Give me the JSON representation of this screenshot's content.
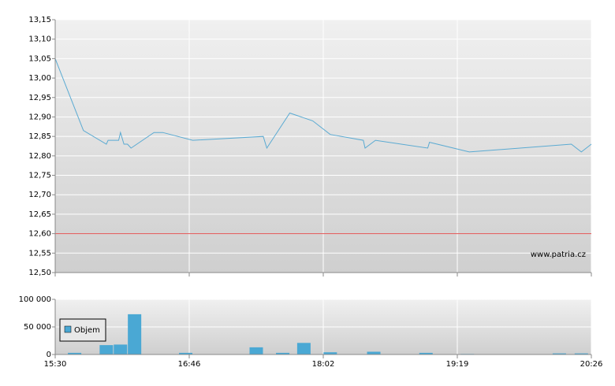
{
  "chart_data": [
    {
      "type": "line",
      "color": "#5aaad2",
      "x": [
        930,
        946,
        959,
        960,
        966,
        967,
        969,
        971,
        973,
        986,
        991,
        1008,
        1048,
        1050,
        1063,
        1076,
        1086,
        1105,
        1106,
        1112,
        1142,
        1143,
        1165,
        1216,
        1221,
        1226
      ],
      "values": [
        13.05,
        12.865,
        12.83,
        12.84,
        12.84,
        12.86,
        12.83,
        12.83,
        12.82,
        12.86,
        12.86,
        12.84,
        12.85,
        12.82,
        12.91,
        12.89,
        12.855,
        12.84,
        12.82,
        12.84,
        12.82,
        12.835,
        12.81,
        12.83,
        12.81,
        12.83
      ],
      "reference": 12.6,
      "reference_color": "#e05050",
      "ylim": [
        12.5,
        13.15
      ],
      "yticks": [
        {
          "value": 12.5,
          "label": "12,50"
        },
        {
          "value": 12.55,
          "label": "12,55"
        },
        {
          "value": 12.6,
          "label": "12,60"
        },
        {
          "value": 12.65,
          "label": "12,65"
        },
        {
          "value": 12.7,
          "label": "12,70"
        },
        {
          "value": 12.75,
          "label": "12,75"
        },
        {
          "value": 12.8,
          "label": "12,80"
        },
        {
          "value": 12.85,
          "label": "12,85"
        },
        {
          "value": 12.9,
          "label": "12,90"
        },
        {
          "value": 12.95,
          "label": "12,95"
        },
        {
          "value": 13.0,
          "label": "13,00"
        },
        {
          "value": 13.05,
          "label": "13,05"
        },
        {
          "value": 13.1,
          "label": "13,10"
        },
        {
          "value": 13.15,
          "label": "13,15"
        }
      ],
      "watermark": "www.patria.cz",
      "grid": true
    },
    {
      "type": "bar",
      "color": "#4aa8d4",
      "series": [
        {
          "name": "Objem",
          "color": "#4aa8d4",
          "x": [
            941,
            959,
            967,
            975,
            1004,
            1044,
            1059,
            1071,
            1086,
            1111,
            1141,
            1164,
            1210,
            1221
          ],
          "values": [
            3000,
            17000,
            18000,
            73000,
            3000,
            13000,
            3000,
            21000,
            4000,
            5000,
            3000,
            1000,
            2000,
            2000
          ]
        }
      ],
      "ylim": [
        0,
        100000
      ],
      "yticks": [
        {
          "value": 0,
          "label": "0"
        },
        {
          "value": 50000,
          "label": "50 000"
        },
        {
          "value": 100000,
          "label": "100 000"
        }
      ],
      "xticks": [
        {
          "value": 930,
          "label": "15:30"
        },
        {
          "value": 1006,
          "label": "16:46"
        },
        {
          "value": 1082,
          "label": "18:02"
        },
        {
          "value": 1159,
          "label": "19:19"
        },
        {
          "value": 1226,
          "label": "20:26"
        }
      ],
      "grid": true
    }
  ]
}
